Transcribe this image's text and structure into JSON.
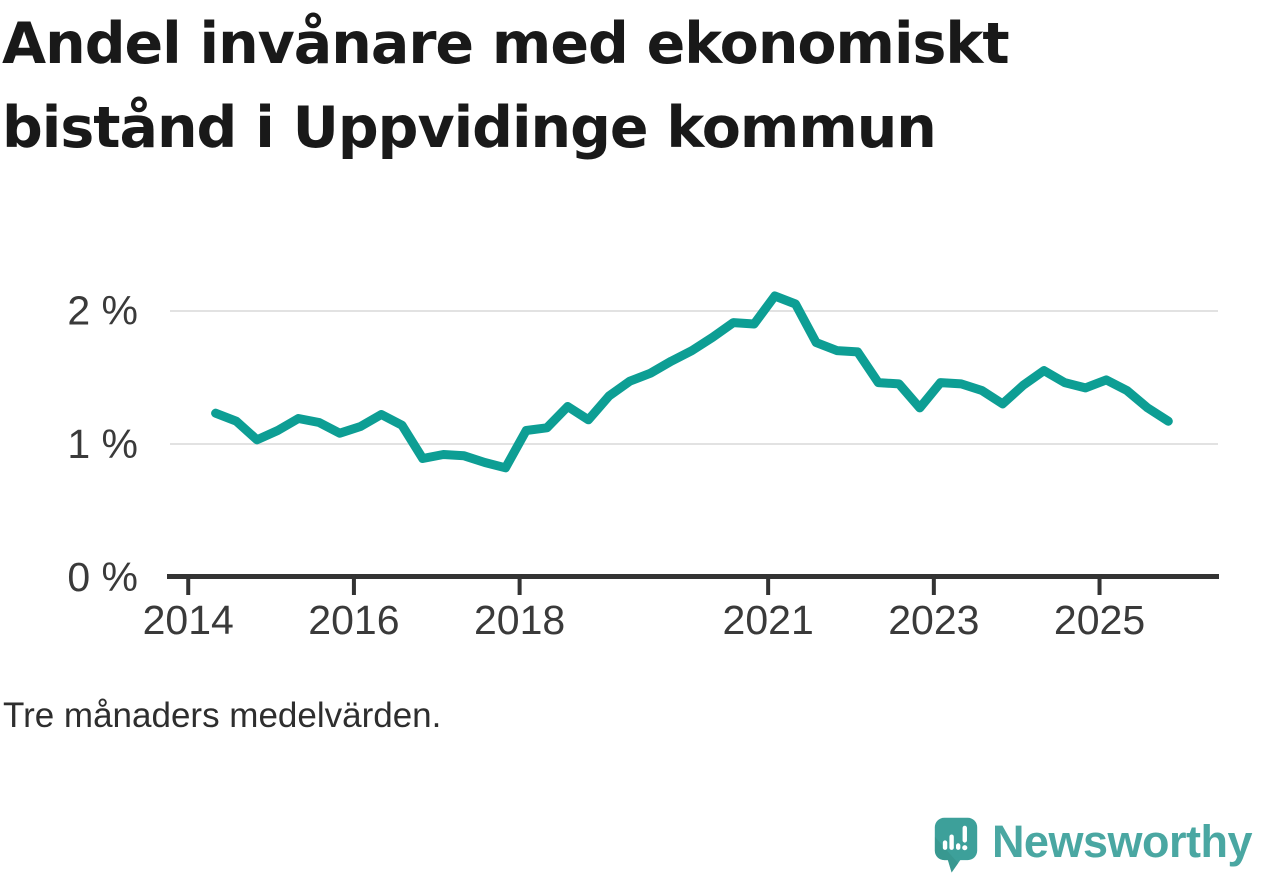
{
  "page": {
    "title": "Andel invånare med ekonomiskt bistånd i Uppvidinge kommun",
    "title_lines": [
      "Andel invånare med ekonomiskt",
      "bistånd i Uppvidinge kommun"
    ],
    "footnote": "Tre månaders medelvärden."
  },
  "branding": {
    "wordmark": "Newsworthy",
    "logo_icon": "speech-bubble-bar-chart-icon",
    "icon_color": "#3da09a",
    "icon_shade_color": "#359189",
    "icon_glyph_color": "#ffffff",
    "wordmark_color": "#4aa7a2"
  },
  "chart_data": {
    "type": "line",
    "title": "Andel invånare med ekonomiskt bistånd i Uppvidinge kommun",
    "note": "Tre månaders medelvärden.",
    "unit": "%",
    "legend": "none",
    "grid": "horizontal-only",
    "line_color": "#0d9e94",
    "axis_color": "#333333",
    "tick_label_color": "#3a3a3a",
    "gridline_color": "#e2e2e2",
    "xlim": [
      2013.78,
      2026.43
    ],
    "ylim": [
      0,
      2.2
    ],
    "x_tick_years": [
      2014,
      2016,
      2018,
      2021,
      2023,
      2025
    ],
    "x_tick_labels": [
      "2014",
      "2016",
      "2018",
      "2021",
      "2023",
      "2025"
    ],
    "y_ticks": [
      {
        "value": 0,
        "label": "0 %"
      },
      {
        "value": 1,
        "label": "1 %"
      },
      {
        "value": 2,
        "label": "2 %"
      }
    ],
    "series": [
      {
        "name": "Andel invånare med ekonomiskt bistånd (%)",
        "x": [
          2014.33,
          2014.58,
          2014.83,
          2015.08,
          2015.33,
          2015.58,
          2015.83,
          2016.08,
          2016.33,
          2016.58,
          2016.83,
          2017.08,
          2017.33,
          2017.58,
          2017.83,
          2018.08,
          2018.33,
          2018.58,
          2018.83,
          2019.08,
          2019.33,
          2019.58,
          2019.83,
          2020.08,
          2020.33,
          2020.58,
          2020.83,
          2021.08,
          2021.33,
          2021.58,
          2021.83,
          2022.08,
          2022.33,
          2022.58,
          2022.83,
          2023.08,
          2023.33,
          2023.58,
          2023.83,
          2024.08,
          2024.33,
          2024.58,
          2024.83,
          2025.08,
          2025.33,
          2025.58,
          2025.83
        ],
        "values": [
          1.23,
          1.17,
          1.03,
          1.1,
          1.19,
          1.16,
          1.08,
          1.13,
          1.22,
          1.14,
          0.89,
          0.92,
          0.91,
          0.86,
          0.82,
          1.1,
          1.12,
          1.28,
          1.18,
          1.36,
          1.47,
          1.53,
          1.62,
          1.7,
          1.8,
          1.91,
          1.9,
          2.11,
          2.05,
          1.76,
          1.7,
          1.69,
          1.46,
          1.45,
          1.27,
          1.46,
          1.45,
          1.4,
          1.3,
          1.44,
          1.55,
          1.46,
          1.42,
          1.48,
          1.4,
          1.27,
          1.17
        ]
      }
    ]
  }
}
